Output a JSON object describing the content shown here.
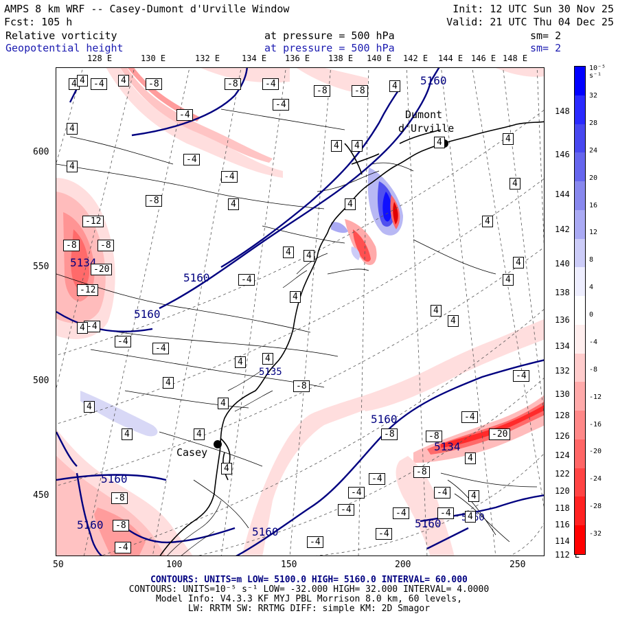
{
  "header": {
    "line1_left": "AMPS 8 km WRF -- Casey-Dumont d'Urville Window",
    "line1_right": "Init: 12 UTC Sun 30 Nov 25",
    "line2_left": "Fcst: 105 h",
    "line2_right": "Valid: 21 UTC Thu 04 Dec 25",
    "field1_name": "Relative vorticity",
    "field1_level": "at pressure =  500 hPa",
    "field1_sm": "sm= 2",
    "field2_name": "Geopotential height",
    "field2_level": "at pressure =  500 hPa",
    "field2_sm": "sm= 2"
  },
  "axes": {
    "x_ticks": [
      "50",
      "100",
      "150",
      "200",
      "250"
    ],
    "y_ticks": [
      "600",
      "550",
      "500",
      "450"
    ],
    "lon_top": [
      "128 E",
      "130 E",
      "132 E",
      "134 E",
      "136 E",
      "138 E",
      "140 E",
      "142 E",
      "144 E",
      "146 E",
      "148 E"
    ],
    "lon_right": [
      "148 E",
      "146 E",
      "144 E",
      "142 E",
      "140 E",
      "138 E",
      "136 E",
      "134 E",
      "132 E",
      "130 E",
      "128 E",
      "126 E",
      "124 E",
      "122 E",
      "120 E",
      "118 E",
      "116 E",
      "114 E",
      "112 E"
    ]
  },
  "colorbar": {
    "units": "10⁻⁵ s⁻¹",
    "labels": [
      "32",
      "28",
      "24",
      "20",
      "16",
      "12",
      "8",
      "4",
      "0",
      "-4",
      "-8",
      "-12",
      "-16",
      "-20",
      "-24",
      "-28",
      "-32"
    ],
    "colors": [
      "#0000ff",
      "#2a2aff",
      "#4848f0",
      "#6666ee",
      "#8888ee",
      "#aaaaf4",
      "#ccccf8",
      "#eeeeff",
      "#ffffff",
      "#ffeeee",
      "#ffcccc",
      "#ffaaaa",
      "#ff8888",
      "#ff6666",
      "#ff4444",
      "#ff2222",
      "#ff0000"
    ]
  },
  "map": {
    "stations": [
      {
        "name": "Dumont",
        "name2": "d'Urville"
      },
      {
        "name": "Casey"
      }
    ],
    "height_labels": [
      "5160",
      "5160",
      "5160",
      "5160",
      "5160",
      "5160",
      "5160",
      "5160",
      "5160"
    ],
    "height_minor_labels": [
      "5134",
      "5134",
      "5135"
    ],
    "vort_labels_neg": [
      "-4",
      "-8",
      "-8",
      "-4",
      "-8",
      "-8",
      "-4",
      "-4",
      "-8",
      "-4",
      "-4",
      "-12",
      "-8",
      "-8",
      "-20",
      "-12",
      "-4",
      "-4",
      "-4",
      "-4",
      "-8",
      "-8",
      "-4",
      "-8",
      "-20",
      "-8",
      "-4",
      "-4",
      "-4",
      "-4",
      "-4",
      "-4",
      "-4",
      "-4",
      "-4",
      "-4",
      "-8",
      "-8"
    ],
    "vort_labels_pos": [
      "4",
      "4",
      "4",
      "4",
      "4",
      "4",
      "4",
      "4",
      "4",
      "4",
      "4",
      "4",
      "4",
      "4",
      "4",
      "4",
      "4",
      "4",
      "4",
      "4",
      "4",
      "4",
      "4",
      "4",
      "4",
      "4",
      "4",
      "4",
      "4",
      "4",
      "4",
      "4",
      "4"
    ]
  },
  "footer": {
    "line1": "CONTOURS:  UNITS=m  LOW=  5100.0      HIGH=  5160.0      INTERVAL=  60.000",
    "line2": "CONTOURS:  UNITS=10⁻⁵ s⁻¹  LOW=  -32.000      HIGH=  32.000      INTERVAL=  4.0000",
    "line3": "Model Info: V4.3.3   KF      MYJ PBL  Morrison        8.0 km,  60 levels,",
    "line4": "LW: RRTM SW: RRTMG   DIFF: simple KM: 2D Smagor"
  },
  "colors": {
    "height_contour": "#000080",
    "vort_contour": "#000000",
    "coast": "#000000",
    "grid": "#555555"
  }
}
